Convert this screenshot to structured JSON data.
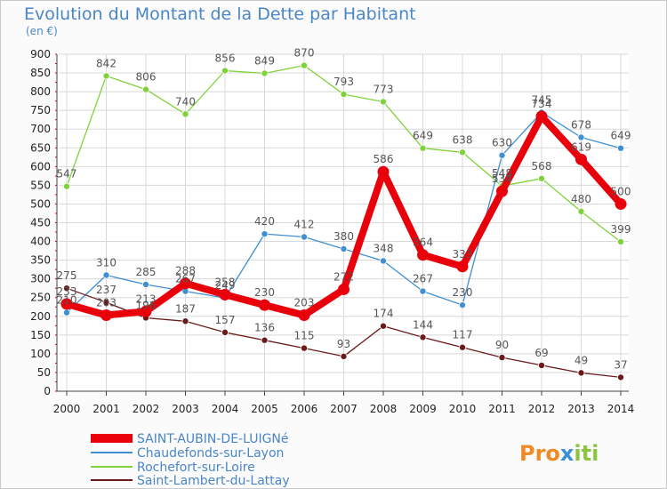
{
  "title": "Evolution du Montant de la Dette par Habitant",
  "unit": "(en €)",
  "brand": {
    "part1": "Pro",
    "part2": "x",
    "part3": "iti",
    "color1": "#f08a24",
    "color2": "#3a8fd6",
    "color3": "#8bc53f"
  },
  "chart_data": {
    "type": "line",
    "title": "Evolution du Montant de la Dette par Habitant",
    "ylabel": "(en €)",
    "xlabel": "",
    "x": [
      "2000",
      "2001",
      "2002",
      "2003",
      "2004",
      "2005",
      "2006",
      "2007",
      "2008",
      "2009",
      "2010",
      "2011",
      "2012",
      "2013",
      "2014"
    ],
    "ylim": [
      0,
      900
    ],
    "yticks": [
      0,
      50,
      100,
      150,
      200,
      250,
      300,
      350,
      400,
      450,
      500,
      550,
      600,
      650,
      700,
      750,
      800,
      850,
      900
    ],
    "grid": true,
    "legend_position": "bottom-left",
    "series": [
      {
        "name": "SAINT-AUBIN-DE-LUIGNé",
        "color": "#e8000b",
        "values": [
          233,
          203,
          213,
          288,
          258,
          230,
          203,
          272,
          586,
          364,
          333,
          534,
          734,
          619,
          500
        ]
      },
      {
        "name": "Chaudefonds-sur-Layon",
        "color": "#3f8fd2",
        "values": [
          210,
          310,
          285,
          267,
          249,
          420,
          412,
          380,
          348,
          267,
          230,
          630,
          745,
          678,
          649
        ]
      },
      {
        "name": "Rochefort-sur-Loire",
        "color": "#7fd33a",
        "values": [
          547,
          842,
          806,
          740,
          856,
          849,
          870,
          793,
          773,
          649,
          638,
          548,
          568,
          480,
          399
        ]
      },
      {
        "name": "Saint-Lambert-du-Lattay",
        "color": "#6b1a1a",
        "values": [
          275,
          237,
          196,
          187,
          157,
          136,
          115,
          93,
          174,
          144,
          117,
          90,
          69,
          49,
          37
        ]
      }
    ],
    "data_labels": [
      [
        "233",
        "203",
        "213",
        "288",
        "258",
        "230",
        "203",
        "272",
        "586",
        "364",
        "333",
        "534",
        "734",
        "619",
        "500"
      ],
      [
        "210",
        "310",
        "285",
        "267",
        "249",
        "420",
        "412",
        "380",
        "348",
        "267",
        "230",
        "630",
        "745",
        "678",
        "649"
      ],
      [
        "547",
        "842",
        "806",
        "740",
        "856",
        "849",
        "870",
        "793",
        "773",
        "649",
        "638",
        "548",
        "568",
        "480",
        "399"
      ],
      [
        "275",
        "237",
        "196",
        "187",
        "157",
        "136",
        "115",
        "93",
        "174",
        "144",
        "117",
        "90",
        "69",
        "49",
        "37"
      ]
    ]
  }
}
